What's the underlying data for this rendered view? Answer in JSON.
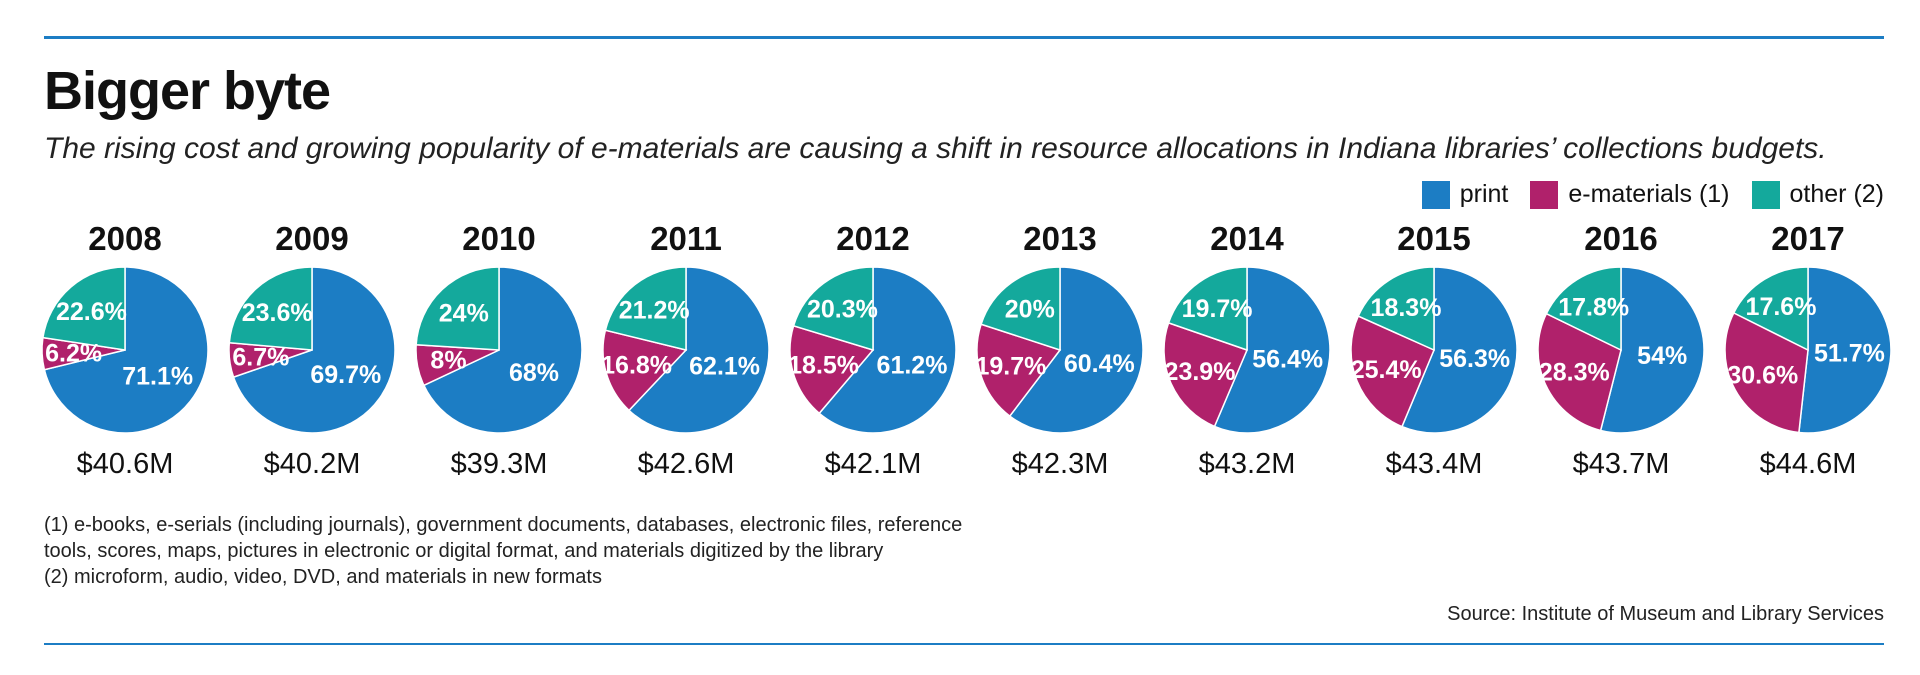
{
  "header": {
    "title": "Bigger byte",
    "subtitle": "The rising cost and growing popularity of e-materials are causing a shift in resource allocations in Indiana libraries’ collections budgets."
  },
  "legend": [
    {
      "label": "print",
      "color": "#1c7dc4"
    },
    {
      "label": "e-materials (1)",
      "color": "#b0216b"
    },
    {
      "label": "other (2)",
      "color": "#14a99c"
    }
  ],
  "chart_data": {
    "type": "pie",
    "series_names": [
      "print",
      "e-materials (1)",
      "other (2)"
    ],
    "colors": [
      "#1c7dc4",
      "#b0216b",
      "#14a99c"
    ],
    "pies": [
      {
        "year": "2008",
        "total": "$40.6M",
        "values": [
          71.1,
          6.2,
          22.6
        ],
        "labels": [
          "71.1%",
          "6.2%",
          "22.6%"
        ]
      },
      {
        "year": "2009",
        "total": "$40.2M",
        "values": [
          69.7,
          6.7,
          23.6
        ],
        "labels": [
          "69.7%",
          "6.7%",
          "23.6%"
        ]
      },
      {
        "year": "2010",
        "total": "$39.3M",
        "values": [
          68,
          8,
          24
        ],
        "labels": [
          "68%",
          "8%",
          "24%"
        ]
      },
      {
        "year": "2011",
        "total": "$42.6M",
        "values": [
          62.1,
          16.8,
          21.2
        ],
        "labels": [
          "62.1%",
          "16.8%",
          "21.2%"
        ]
      },
      {
        "year": "2012",
        "total": "$42.1M",
        "values": [
          61.2,
          18.5,
          20.3
        ],
        "labels": [
          "61.2%",
          "18.5%",
          "20.3%"
        ]
      },
      {
        "year": "2013",
        "total": "$42.3M",
        "values": [
          60.4,
          19.7,
          20
        ],
        "labels": [
          "60.4%",
          "19.7%",
          "20%"
        ]
      },
      {
        "year": "2014",
        "total": "$43.2M",
        "values": [
          56.4,
          23.9,
          19.7
        ],
        "labels": [
          "56.4%",
          "23.9%",
          "19.7%"
        ]
      },
      {
        "year": "2015",
        "total": "$43.4M",
        "values": [
          56.3,
          25.4,
          18.3
        ],
        "labels": [
          "56.3%",
          "25.4%",
          "18.3%"
        ]
      },
      {
        "year": "2016",
        "total": "$43.7M",
        "values": [
          54,
          28.3,
          17.8
        ],
        "labels": [
          "54%",
          "28.3%",
          "17.8%"
        ]
      },
      {
        "year": "2017",
        "total": "$44.6M",
        "values": [
          51.7,
          30.6,
          17.6
        ],
        "labels": [
          "51.7%",
          "30.6%",
          "17.6%"
        ]
      }
    ]
  },
  "footnotes": {
    "note1_line1": "(1) e-books, e-serials (including journals), government documents, databases, electronic files, reference",
    "note1_line2": "tools, scores, maps, pictures in electronic or digital format, and materials digitized by the library",
    "note2": "(2) microform, audio, video, DVD, and materials in new formats"
  },
  "source": "Source: Institute of Museum and Library Services"
}
